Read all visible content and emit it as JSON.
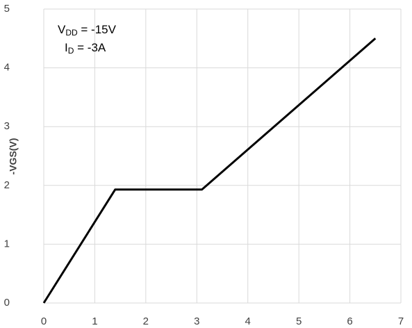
{
  "chart_data": {
    "type": "line",
    "y_label": "-VGS(V)",
    "annotations": [
      {
        "main": "V",
        "sub": "DD",
        "rest": " = -15V"
      },
      {
        "main": "I",
        "sub": "D",
        "rest": " = -3A"
      }
    ],
    "x": [
      0,
      1.4,
      3.1,
      6.5
    ],
    "values": [
      0,
      1.93,
      1.93,
      4.5
    ],
    "color": "#000000",
    "xlim": [
      0,
      7
    ],
    "xticks": [
      0,
      1,
      2,
      3,
      4,
      5,
      6,
      7
    ],
    "ylim": [
      0,
      5
    ],
    "yticks": [
      0,
      1,
      2,
      3,
      4,
      5
    ],
    "grid": true
  }
}
